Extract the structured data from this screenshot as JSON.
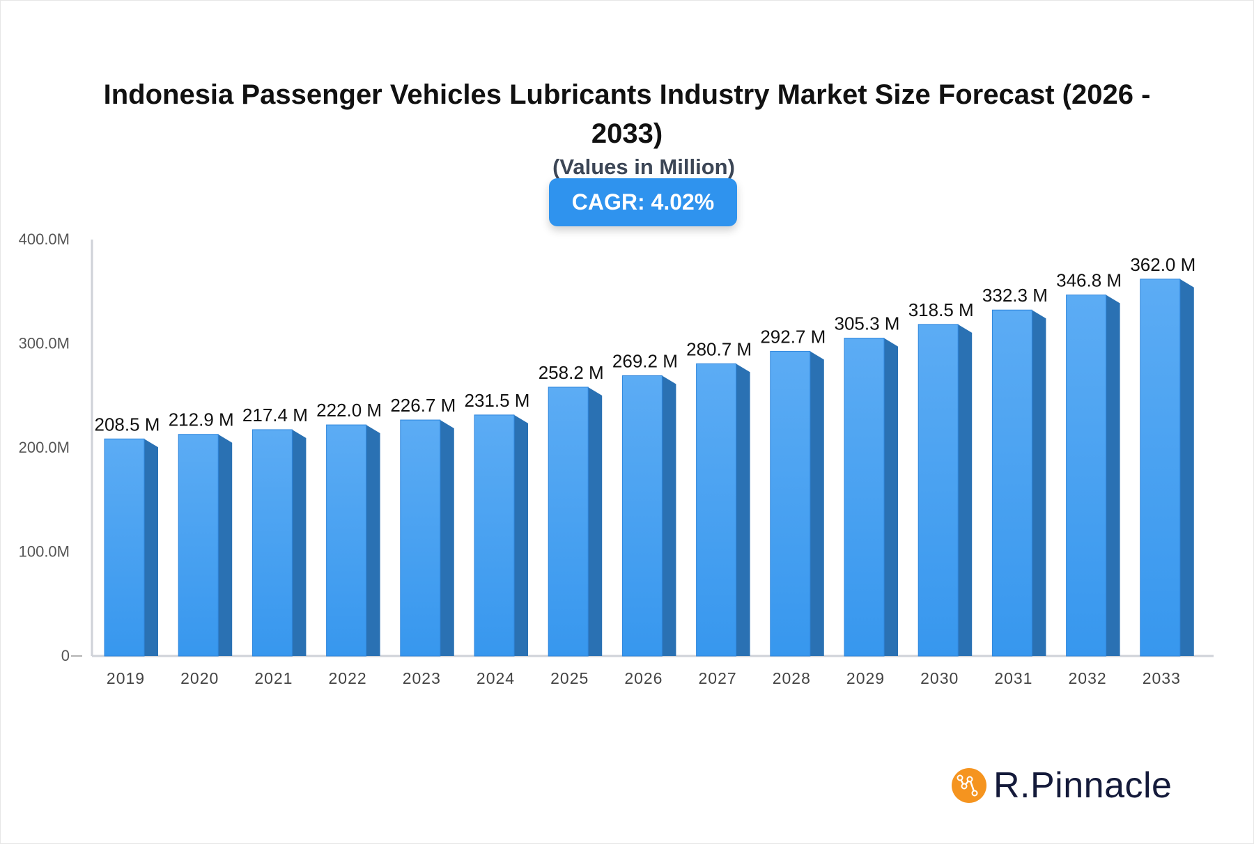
{
  "chart_data": {
    "type": "bar",
    "title": "Indonesia Passenger Vehicles Lubricants Industry Market Size Forecast (2026 - 2033)",
    "subtitle": "(Values in Million)",
    "badge": "CAGR: 4.02%",
    "categories": [
      "2019",
      "2020",
      "2021",
      "2022",
      "2023",
      "2024",
      "2025",
      "2026",
      "2027",
      "2028",
      "2029",
      "2030",
      "2031",
      "2032",
      "2033"
    ],
    "values": [
      208.5,
      212.9,
      217.4,
      222.0,
      226.7,
      231.5,
      258.2,
      269.2,
      280.7,
      292.7,
      305.3,
      318.5,
      332.3,
      346.8,
      362.0
    ],
    "data_labels": [
      "208.5 M",
      "212.9 M",
      "217.4 M",
      "222.0 M",
      "226.7 M",
      "231.5 M",
      "258.2 M",
      "269.2 M",
      "280.7 M",
      "292.7 M",
      "305.3 M",
      "318.5 M",
      "332.3 M",
      "346.8 M",
      "362.0 M"
    ],
    "yticks": [
      0,
      100,
      200,
      300,
      400
    ],
    "ytick_labels": [
      "0",
      "100.0M",
      "200.0M",
      "300.0M",
      "400.0M"
    ],
    "ylim": [
      0,
      400
    ],
    "xlabel": "",
    "ylabel": "",
    "grid": false,
    "colors": {
      "bar_front_top": "#5cacf4",
      "bar_front_bottom": "#3797ee",
      "bar_side": "#2a71b3",
      "badge": "#2f93ee"
    }
  },
  "brand": {
    "name": "R.Pinnacle",
    "logo_color": "#f5941f"
  }
}
